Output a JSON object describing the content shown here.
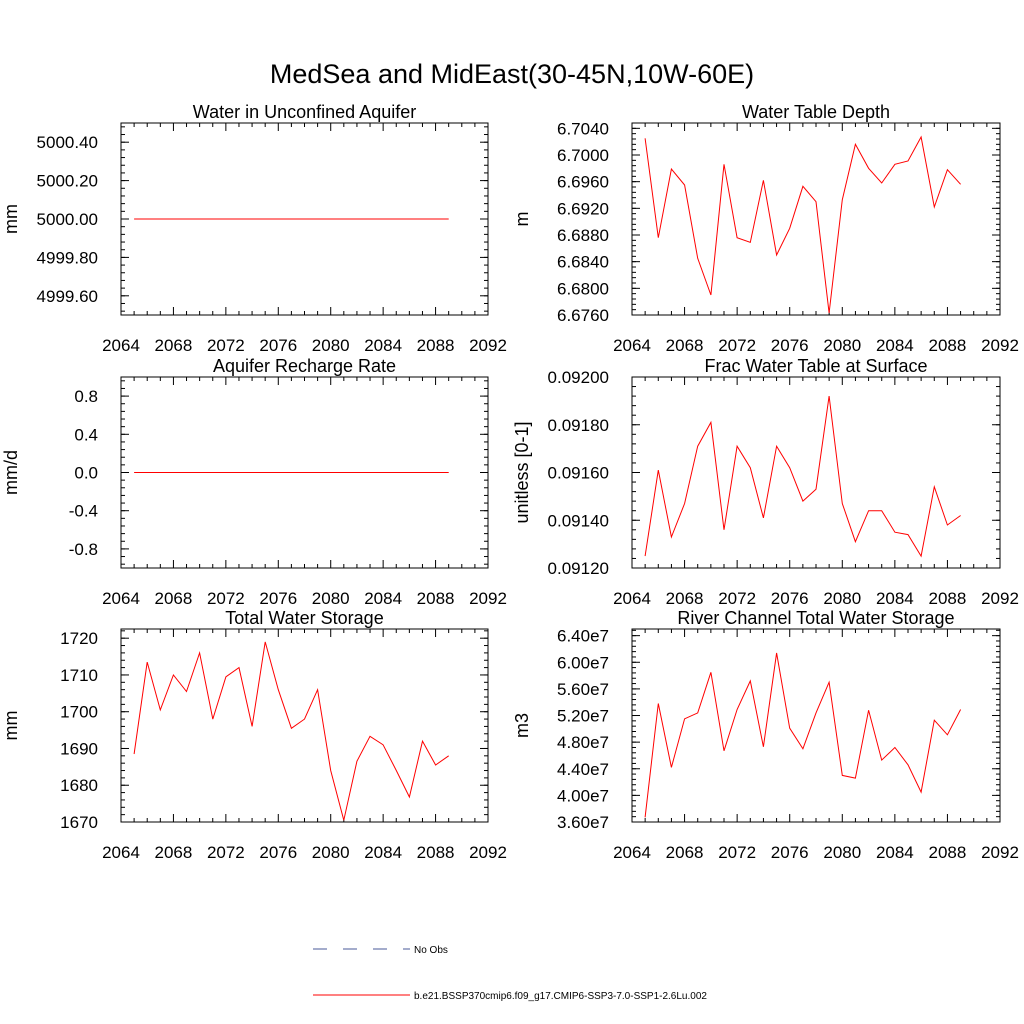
{
  "title": "MedSea and MidEast(30-45N,10W-60E)",
  "chart_data": [
    {
      "type": "line",
      "title": "Water in Unconfined Aquifer",
      "ylabel": "mm",
      "xlim": [
        2064,
        2092
      ],
      "ylim": [
        4999.5,
        5000.5
      ],
      "xticks": [
        "2064",
        "2068",
        "2072",
        "2076",
        "2080",
        "2084",
        "2088",
        "2092"
      ],
      "yticks": [
        {
          "v": 4999.6,
          "t": "4999.60"
        },
        {
          "v": 4999.8,
          "t": "4999.80"
        },
        {
          "v": 5000.0,
          "t": "5000.00"
        },
        {
          "v": 5000.2,
          "t": "5000.20"
        },
        {
          "v": 5000.4,
          "t": "5000.40"
        }
      ],
      "x": [
        2065,
        2066,
        2067,
        2068,
        2069,
        2070,
        2071,
        2072,
        2073,
        2074,
        2075,
        2076,
        2077,
        2078,
        2079,
        2080,
        2081,
        2082,
        2083,
        2084,
        2085,
        2086,
        2087,
        2088,
        2089
      ],
      "series": [
        {
          "color": "#ff0000",
          "values": [
            5000,
            5000,
            5000,
            5000,
            5000,
            5000,
            5000,
            5000,
            5000,
            5000,
            5000,
            5000,
            5000,
            5000,
            5000,
            5000,
            5000,
            5000,
            5000,
            5000,
            5000,
            5000,
            5000,
            5000,
            5000
          ]
        }
      ]
    },
    {
      "type": "line",
      "title": "Water Table Depth",
      "ylabel": "m",
      "xlim": [
        2064,
        2092
      ],
      "ylim": [
        6.676,
        6.7048
      ],
      "xticks": [
        "2064",
        "2068",
        "2072",
        "2076",
        "2080",
        "2084",
        "2088",
        "2092"
      ],
      "yticks": [
        {
          "v": 6.676,
          "t": "6.6760"
        },
        {
          "v": 6.68,
          "t": "6.6800"
        },
        {
          "v": 6.684,
          "t": "6.6840"
        },
        {
          "v": 6.688,
          "t": "6.6880"
        },
        {
          "v": 6.692,
          "t": "6.6920"
        },
        {
          "v": 6.696,
          "t": "6.6960"
        },
        {
          "v": 6.7,
          "t": "6.7000"
        },
        {
          "v": 6.704,
          "t": "6.7040"
        }
      ],
      "x": [
        2065,
        2066,
        2067,
        2068,
        2069,
        2070,
        2071,
        2072,
        2073,
        2074,
        2075,
        2076,
        2077,
        2078,
        2079,
        2080,
        2081,
        2082,
        2083,
        2084,
        2085,
        2086,
        2087,
        2088,
        2089
      ],
      "series": [
        {
          "color": "#ff0000",
          "values": [
            6.7025,
            6.6876,
            6.6979,
            6.6955,
            6.6845,
            6.679,
            6.6986,
            6.6876,
            6.6869,
            6.6962,
            6.685,
            6.689,
            6.6953,
            6.693,
            6.6763,
            6.6933,
            6.7016,
            6.698,
            6.6958,
            6.6986,
            6.6991,
            6.7027,
            6.6922,
            6.6978,
            6.6956
          ]
        }
      ]
    },
    {
      "type": "line",
      "title": "Aquifer Recharge Rate",
      "ylabel": "mm/d",
      "xlim": [
        2064,
        2092
      ],
      "ylim": [
        -1.0,
        1.0
      ],
      "xticks": [
        "2064",
        "2068",
        "2072",
        "2076",
        "2080",
        "2084",
        "2088",
        "2092"
      ],
      "yticks": [
        {
          "v": -0.8,
          "t": "-0.8"
        },
        {
          "v": -0.4,
          "t": "-0.4"
        },
        {
          "v": 0.0,
          "t": "0.0"
        },
        {
          "v": 0.4,
          "t": "0.4"
        },
        {
          "v": 0.8,
          "t": "0.8"
        }
      ],
      "x": [
        2065,
        2066,
        2067,
        2068,
        2069,
        2070,
        2071,
        2072,
        2073,
        2074,
        2075,
        2076,
        2077,
        2078,
        2079,
        2080,
        2081,
        2082,
        2083,
        2084,
        2085,
        2086,
        2087,
        2088,
        2089
      ],
      "series": [
        {
          "color": "#ff0000",
          "values": [
            0,
            0,
            0,
            0,
            0,
            0,
            0,
            0,
            0,
            0,
            0,
            0,
            0,
            0,
            0,
            0,
            0,
            0,
            0,
            0,
            0,
            0,
            0,
            0,
            0
          ]
        }
      ]
    },
    {
      "type": "line",
      "title": "Frac Water Table at Surface",
      "ylabel": "unitless [0-1]",
      "xlim": [
        2064,
        2092
      ],
      "ylim": [
        0.0912,
        0.092
      ],
      "xticks": [
        "2064",
        "2068",
        "2072",
        "2076",
        "2080",
        "2084",
        "2088",
        "2092"
      ],
      "yticks": [
        {
          "v": 0.0912,
          "t": "0.09120"
        },
        {
          "v": 0.0914,
          "t": "0.09140"
        },
        {
          "v": 0.0916,
          "t": "0.09160"
        },
        {
          "v": 0.0918,
          "t": "0.09180"
        },
        {
          "v": 0.092,
          "t": "0.09200"
        }
      ],
      "x": [
        2065,
        2066,
        2067,
        2068,
        2069,
        2070,
        2071,
        2072,
        2073,
        2074,
        2075,
        2076,
        2077,
        2078,
        2079,
        2080,
        2081,
        2082,
        2083,
        2084,
        2085,
        2086,
        2087,
        2088,
        2089
      ],
      "series": [
        {
          "color": "#ff0000",
          "values": [
            0.09125,
            0.09161,
            0.09133,
            0.09147,
            0.09171,
            0.09181,
            0.09136,
            0.09171,
            0.09162,
            0.09141,
            0.09171,
            0.09162,
            0.09148,
            0.09153,
            0.09192,
            0.09147,
            0.09131,
            0.09144,
            0.09144,
            0.09135,
            0.09134,
            0.09125,
            0.09154,
            0.09138,
            0.09142
          ]
        }
      ]
    },
    {
      "type": "line",
      "title": "Total Water Storage",
      "ylabel": "mm",
      "xlim": [
        2064,
        2092
      ],
      "ylim": [
        1670,
        1722.5
      ],
      "xticks": [
        "2064",
        "2068",
        "2072",
        "2076",
        "2080",
        "2084",
        "2088",
        "2092"
      ],
      "yticks": [
        {
          "v": 1670,
          "t": "1670"
        },
        {
          "v": 1680,
          "t": "1680"
        },
        {
          "v": 1690,
          "t": "1690"
        },
        {
          "v": 1700,
          "t": "1700"
        },
        {
          "v": 1710,
          "t": "1710"
        },
        {
          "v": 1720,
          "t": "1720"
        }
      ],
      "x": [
        2065,
        2066,
        2067,
        2068,
        2069,
        2070,
        2071,
        2072,
        2073,
        2074,
        2075,
        2076,
        2077,
        2078,
        2079,
        2080,
        2081,
        2082,
        2083,
        2084,
        2085,
        2086,
        2087,
        2088,
        2089
      ],
      "series": [
        {
          "color": "#ff0000",
          "values": [
            1688.5,
            1713.5,
            1700.5,
            1710,
            1705.5,
            1716,
            1698,
            1709.5,
            1712,
            1696,
            1719,
            1706,
            1695.5,
            1698,
            1706,
            1684,
            1670.5,
            1686.5,
            1693.3,
            1691,
            1684,
            1676.8,
            1692,
            1685.5,
            1688
          ]
        }
      ]
    },
    {
      "type": "line",
      "title": "River Channel Total Water Storage",
      "ylabel": "m3",
      "xlim": [
        2064,
        2092
      ],
      "ylim": [
        36000000,
        65000000
      ],
      "xticks": [
        "2064",
        "2068",
        "2072",
        "2076",
        "2080",
        "2084",
        "2088",
        "2092"
      ],
      "yticks": [
        {
          "v": 36000000,
          "t": "3.60e7"
        },
        {
          "v": 40000000,
          "t": "4.00e7"
        },
        {
          "v": 44000000,
          "t": "4.40e7"
        },
        {
          "v": 48000000,
          "t": "4.80e7"
        },
        {
          "v": 52000000,
          "t": "5.20e7"
        },
        {
          "v": 56000000,
          "t": "5.60e7"
        },
        {
          "v": 60000000,
          "t": "6.00e7"
        },
        {
          "v": 64000000,
          "t": "6.40e7"
        }
      ],
      "x": [
        2065,
        2066,
        2067,
        2068,
        2069,
        2070,
        2071,
        2072,
        2073,
        2074,
        2075,
        2076,
        2077,
        2078,
        2079,
        2080,
        2081,
        2082,
        2083,
        2084,
        2085,
        2086,
        2087,
        2088,
        2089
      ],
      "series": [
        {
          "color": "#ff0000",
          "values": [
            36700000,
            53800000,
            44200000,
            51500000,
            52400000,
            58500000,
            46700000,
            52900000,
            57200000,
            47300000,
            61400000,
            50100000,
            47000000,
            52400000,
            57000000,
            43000000,
            42600000,
            52800000,
            45300000,
            47200000,
            44600000,
            40500000,
            51300000,
            49100000,
            52900000
          ]
        }
      ]
    }
  ],
  "legend": [
    {
      "label": "No Obs",
      "color": "#4a5a9a",
      "style": "dashed"
    },
    {
      "label": "b.e21.BSSP370cmip6.f09_g17.CMIP6-SSP3-7.0-SSP1-2.6Lu.002",
      "color": "#ff0000",
      "style": "solid"
    }
  ]
}
